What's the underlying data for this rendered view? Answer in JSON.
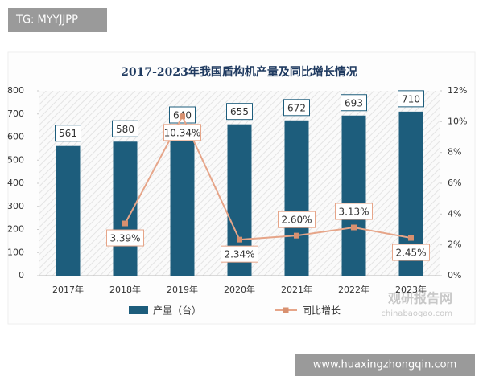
{
  "chart_data": {
    "type": "bar-line",
    "title": "2017-2023年我国盾构机产量及同比增长情况",
    "categories": [
      "2017年",
      "2018年",
      "2019年",
      "2020年",
      "2021年",
      "2022年",
      "2023年"
    ],
    "series": [
      {
        "name": "产量（台）",
        "type": "bar",
        "color": "#1d5d7c",
        "values": [
          561,
          580,
          640,
          655,
          672,
          693,
          710
        ]
      },
      {
        "name": "同比增长",
        "type": "line",
        "axis": "y2",
        "color": "#e6a589",
        "values": [
          null,
          3.39,
          10.34,
          2.34,
          2.6,
          3.13,
          2.45
        ],
        "value_labels": [
          null,
          "3.39%",
          "10.34%",
          "2.34%",
          "2.60%",
          "3.13%",
          "2.45%"
        ]
      }
    ],
    "ylim": [
      0,
      800
    ],
    "yticks": [
      0,
      100,
      200,
      300,
      400,
      500,
      600,
      700,
      800
    ],
    "y2lim": [
      0,
      12
    ],
    "y2ticks": [
      {
        "value": 0,
        "label": "0%"
      },
      {
        "value": 2,
        "label": "2%"
      },
      {
        "value": 4,
        "label": "4%"
      },
      {
        "value": 6,
        "label": "6%"
      },
      {
        "value": 8,
        "label": "8%"
      },
      {
        "value": 10,
        "label": "10%"
      },
      {
        "value": 12,
        "label": "12%"
      }
    ],
    "legend": "bottom"
  },
  "watermarks": {
    "top_left": "TG: MYYJJPP",
    "logo": "观研报告网",
    "logo_url": "chinabaogao.com",
    "bottom_right": "www.huaxingzhongqin.com"
  }
}
